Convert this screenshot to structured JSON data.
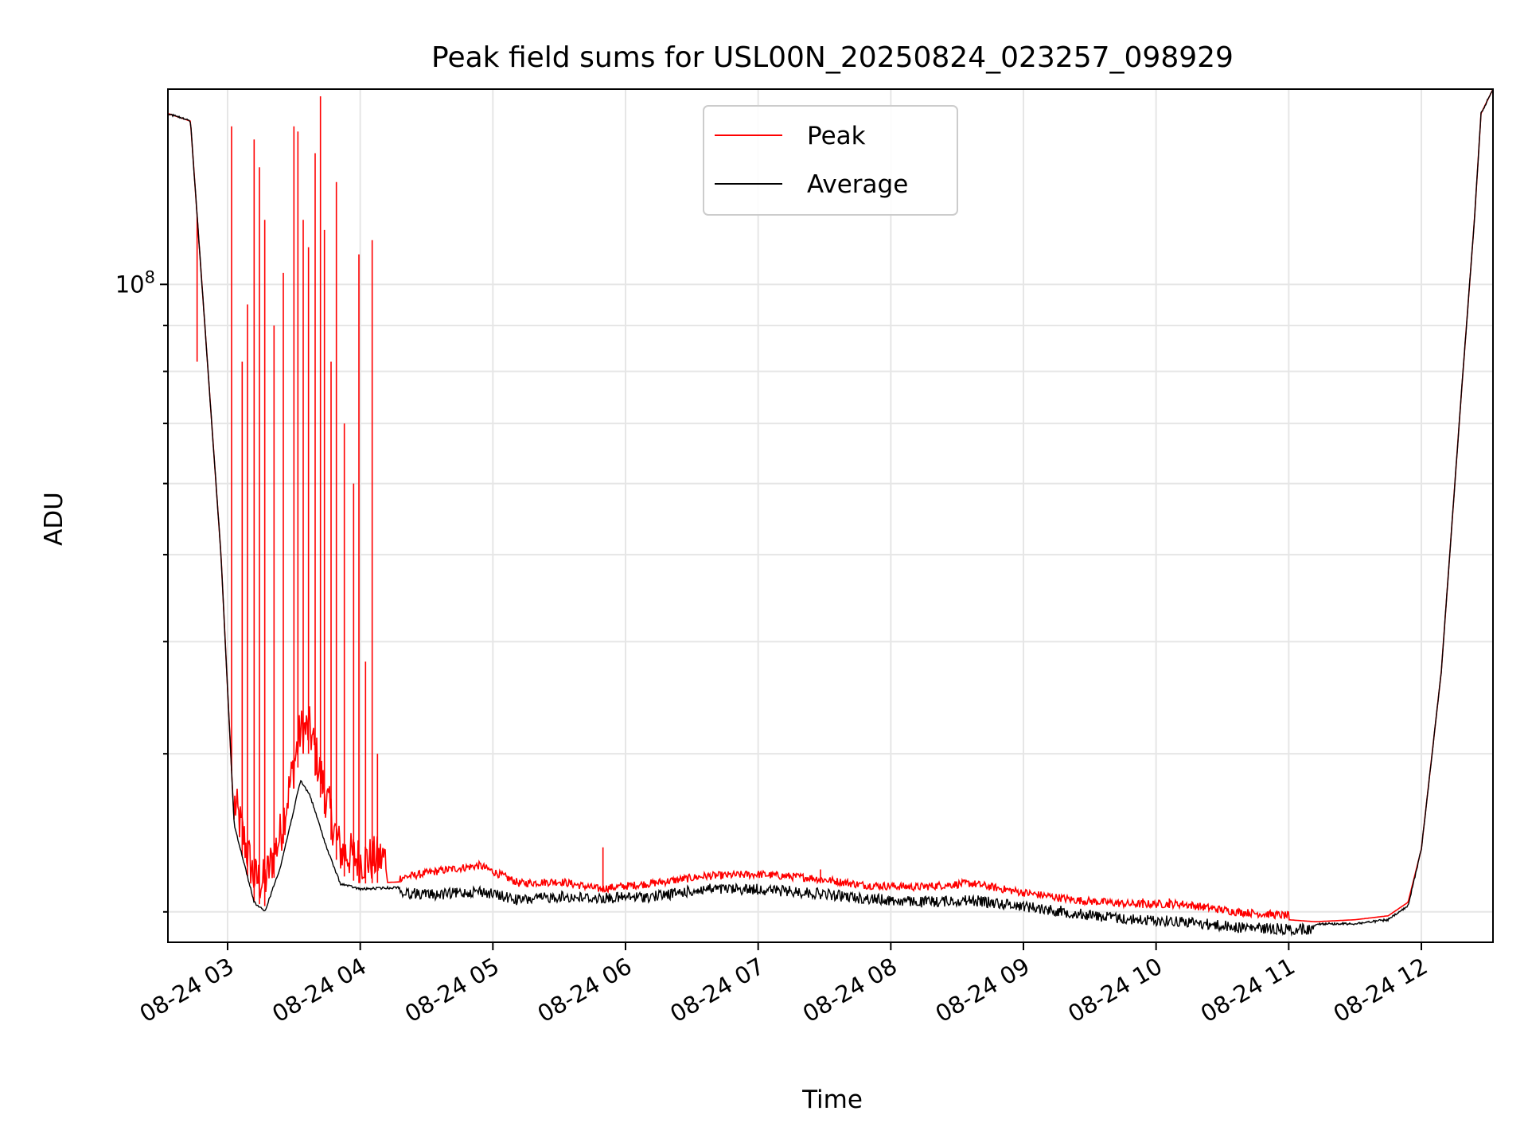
{
  "chart_data": {
    "type": "line",
    "title": "Peak field sums for USL00N_20250824_023257_098929",
    "xlabel": "Time",
    "ylabel": "ADU",
    "x_ticks": [
      "08-24 03",
      "08-24 04",
      "08-24 05",
      "08-24 06",
      "08-24 07",
      "08-24 08",
      "08-24 09",
      "08-24 10",
      "08-24 11",
      "08-24 12"
    ],
    "x_tick_hours": [
      3,
      4,
      5,
      6,
      7,
      8,
      9,
      10,
      11,
      12
    ],
    "xlim": [
      "2025-08-24 02:33",
      "2025-08-24 12:32"
    ],
    "xlim_hours": [
      2.55,
      12.54
    ],
    "yscale": "log",
    "ylim": [
      18500000,
      165000000
    ],
    "y_major_tick": {
      "value": 100000000,
      "base": "10",
      "exponent": "8"
    },
    "y_minor_ticks": [
      20000000,
      30000000,
      40000000,
      50000000,
      60000000,
      70000000,
      80000000,
      90000000
    ],
    "grid": true,
    "legend_position": "top-center",
    "series": [
      {
        "name": "Peak",
        "color": "#ff0000",
        "x_hours": [
          2.55,
          2.72,
          2.95,
          3.05,
          3.2,
          3.28,
          3.4,
          3.55,
          3.62,
          3.75,
          3.85,
          4.0,
          4.3,
          4.6,
          4.9,
          5.2,
          5.5,
          5.8,
          6.2,
          6.6,
          7.0,
          7.4,
          7.8,
          8.2,
          8.6,
          9.0,
          9.4,
          9.8,
          10.2,
          10.6,
          11.0,
          11.2,
          11.5,
          11.75,
          11.9,
          12.0,
          12.15,
          12.3,
          12.4,
          12.45,
          12.54
        ],
        "values": [
          155000000,
          152000000,
          50000000,
          25000000,
          20500000,
          20300000,
          23000000,
          30000000,
          30000000,
          25000000,
          22000000,
          21500000,
          21600000,
          22000000,
          22300000,
          21300000,
          21400000,
          21000000,
          21300000,
          21700000,
          21800000,
          21600000,
          21200000,
          21100000,
          21300000,
          20800000,
          20400000,
          20200000,
          20200000,
          19800000,
          19600000,
          19500000,
          19600000,
          19800000,
          20500000,
          23500000,
          37000000,
          75000000,
          118000000,
          155000000,
          165000000
        ],
        "spikes": [
          {
            "x_hours": 2.77,
            "value": 82000000
          },
          {
            "x_hours": 3.03,
            "value": 150000000
          },
          {
            "x_hours": 3.11,
            "value": 82000000
          },
          {
            "x_hours": 3.15,
            "value": 95000000
          },
          {
            "x_hours": 3.2,
            "value": 145000000
          },
          {
            "x_hours": 3.24,
            "value": 135000000
          },
          {
            "x_hours": 3.28,
            "value": 118000000
          },
          {
            "x_hours": 3.35,
            "value": 90000000
          },
          {
            "x_hours": 3.42,
            "value": 103000000
          },
          {
            "x_hours": 3.5,
            "value": 150000000
          },
          {
            "x_hours": 3.53,
            "value": 148000000
          },
          {
            "x_hours": 3.57,
            "value": 118000000
          },
          {
            "x_hours": 3.61,
            "value": 110000000
          },
          {
            "x_hours": 3.66,
            "value": 140000000
          },
          {
            "x_hours": 3.7,
            "value": 162000000
          },
          {
            "x_hours": 3.73,
            "value": 115000000
          },
          {
            "x_hours": 3.78,
            "value": 82000000
          },
          {
            "x_hours": 3.82,
            "value": 130000000
          },
          {
            "x_hours": 3.88,
            "value": 70000000
          },
          {
            "x_hours": 3.95,
            "value": 60000000
          },
          {
            "x_hours": 3.99,
            "value": 108000000
          },
          {
            "x_hours": 4.04,
            "value": 38000000
          },
          {
            "x_hours": 4.09,
            "value": 112000000
          },
          {
            "x_hours": 4.13,
            "value": 30000000
          },
          {
            "x_hours": 5.83,
            "value": 23600000
          },
          {
            "x_hours": 7.47,
            "value": 22300000
          },
          {
            "x_hours": 9.9,
            "value": 20700000
          },
          {
            "x_hours": 10.1,
            "value": 20700000
          }
        ]
      },
      {
        "name": "Average",
        "color": "#000000",
        "x_hours": [
          2.55,
          2.72,
          2.95,
          3.05,
          3.2,
          3.28,
          3.4,
          3.55,
          3.62,
          3.75,
          3.85,
          4.0,
          4.3,
          4.6,
          4.9,
          5.2,
          5.5,
          5.8,
          6.2,
          6.6,
          7.0,
          7.4,
          7.8,
          8.2,
          8.6,
          9.0,
          9.4,
          9.8,
          10.2,
          10.6,
          11.0,
          11.2,
          11.5,
          11.75,
          11.9,
          12.0,
          12.15,
          12.3,
          12.4,
          12.45,
          12.54
        ],
        "values": [
          155000000,
          152000000,
          50000000,
          25000000,
          20500000,
          20000000,
          22500000,
          28000000,
          27000000,
          23500000,
          21500000,
          21200000,
          21300000,
          21200000,
          21400000,
          20900000,
          21100000,
          21000000,
          21100000,
          21500000,
          21500000,
          21300000,
          21000000,
          20800000,
          20900000,
          20600000,
          20200000,
          19900000,
          19800000,
          19500000,
          19400000,
          19400000,
          19400000,
          19600000,
          20300000,
          23500000,
          37000000,
          75000000,
          118000000,
          155000000,
          165000000
        ]
      }
    ]
  }
}
